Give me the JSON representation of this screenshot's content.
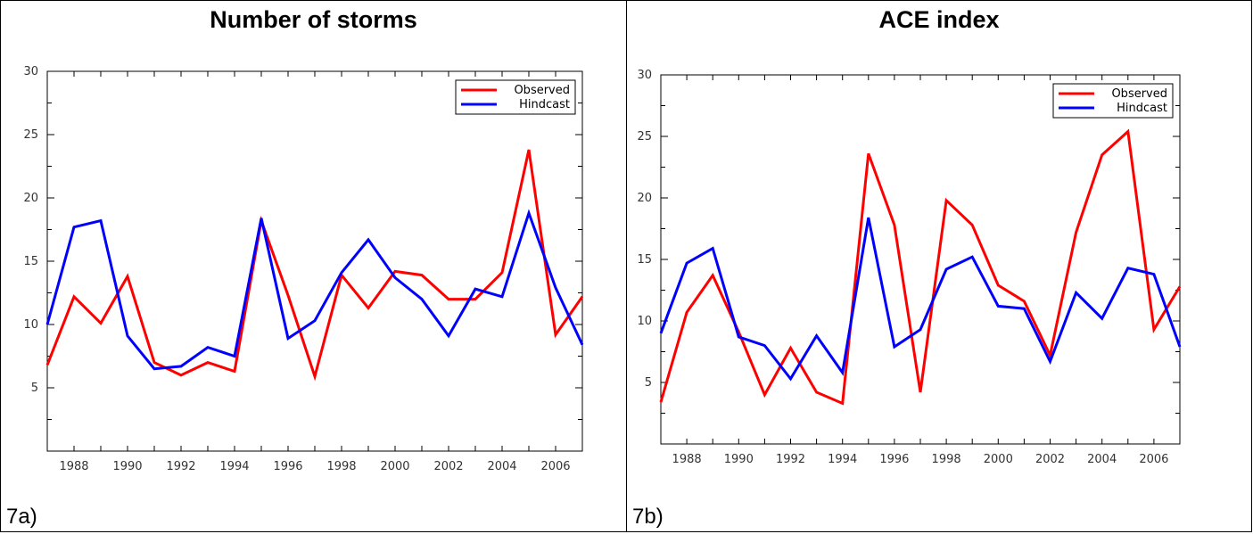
{
  "colors": {
    "observed": "#ff0000",
    "hindcast": "#0000ff",
    "axis": "#000000"
  },
  "panels": [
    {
      "title": "Number of storms",
      "label": "7a)"
    },
    {
      "title": "ACE index",
      "label": "7b)"
    }
  ],
  "chart_data": [
    {
      "type": "line",
      "title": "Number of storms",
      "xlabel": "",
      "ylabel": "",
      "xlim": [
        1987,
        2007
      ],
      "ylim": [
        0,
        30
      ],
      "yticks": [
        5,
        10,
        15,
        20,
        25,
        30
      ],
      "xticks": [
        1988,
        1990,
        1992,
        1994,
        1996,
        1998,
        2000,
        2002,
        2004,
        2006
      ],
      "grid": false,
      "legend": "top-right",
      "x": [
        1987,
        1988,
        1989,
        1990,
        1991,
        1992,
        1993,
        1994,
        1995,
        1996,
        1997,
        1998,
        1999,
        2000,
        2001,
        2002,
        2003,
        2004,
        2005,
        2006,
        2007
      ],
      "series": [
        {
          "name": "Observed",
          "color": "#ff0000",
          "values": [
            6.8,
            12.2,
            10.1,
            13.8,
            7.0,
            6.0,
            7.0,
            6.3,
            18.2,
            12.3,
            5.9,
            13.9,
            11.3,
            14.2,
            13.9,
            12.0,
            12.0,
            14.1,
            23.8,
            9.2,
            12.2
          ]
        },
        {
          "name": "Hindcast",
          "color": "#0000ff",
          "values": [
            10.0,
            17.7,
            18.2,
            9.1,
            6.5,
            6.7,
            8.2,
            7.5,
            18.4,
            8.9,
            10.3,
            14.1,
            16.7,
            13.7,
            12.0,
            9.1,
            12.8,
            12.2,
            18.8,
            12.9,
            8.4
          ]
        }
      ]
    },
    {
      "type": "line",
      "title": "ACE index",
      "xlabel": "",
      "ylabel": "",
      "xlim": [
        1987,
        2007
      ],
      "ylim": [
        0,
        30
      ],
      "yticks": [
        5,
        10,
        15,
        20,
        25,
        30
      ],
      "xticks": [
        1988,
        1990,
        1992,
        1994,
        1996,
        1998,
        2000,
        2002,
        2004,
        2006
      ],
      "grid": false,
      "legend": "top-right",
      "x": [
        1987,
        1988,
        1989,
        1990,
        1991,
        1992,
        1993,
        1994,
        1995,
        1996,
        1997,
        1998,
        1999,
        2000,
        2001,
        2002,
        2003,
        2004,
        2005,
        2006,
        2007
      ],
      "series": [
        {
          "name": "Observed",
          "color": "#ff0000",
          "values": [
            3.4,
            10.7,
            13.7,
            9.1,
            4.0,
            7.8,
            4.2,
            3.3,
            23.6,
            17.8,
            4.2,
            19.8,
            17.8,
            12.9,
            11.6,
            7.2,
            17.2,
            23.5,
            25.4,
            9.3,
            12.8
          ]
        },
        {
          "name": "Hindcast",
          "color": "#0000ff",
          "values": [
            9.0,
            14.7,
            15.9,
            8.7,
            8.0,
            5.3,
            8.8,
            5.8,
            18.4,
            7.9,
            9.3,
            14.2,
            15.2,
            11.2,
            11.0,
            6.7,
            12.3,
            10.2,
            14.3,
            13.8,
            7.9
          ]
        }
      ]
    }
  ]
}
